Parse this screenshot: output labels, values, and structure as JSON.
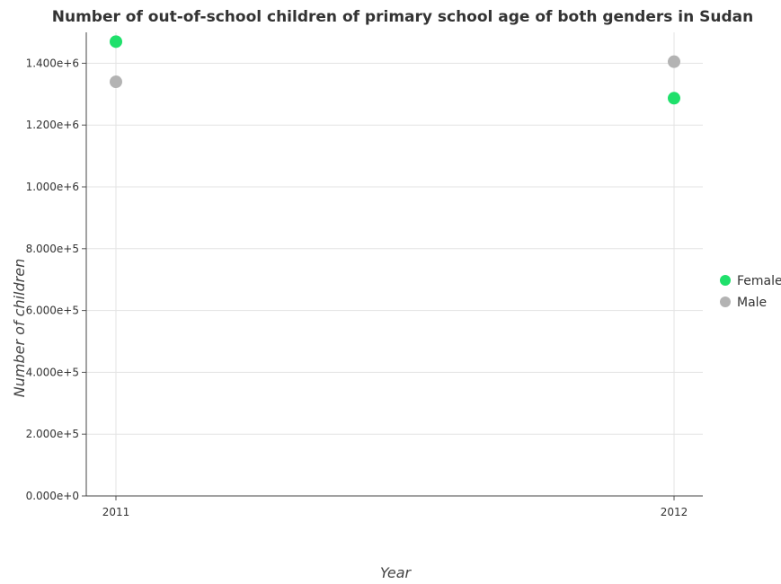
{
  "chart_data": {
    "type": "scatter",
    "title": "Number of out-of-school children of primary school age of both genders in Sudan",
    "xlabel": "Year",
    "ylabel": "Number of children",
    "categories": [
      "2011",
      "2012"
    ],
    "series": [
      {
        "name": "Female",
        "color": "#1fe06b",
        "values": [
          1470000,
          1287000
        ]
      },
      {
        "name": "Male",
        "color": "#b3b3b3",
        "values": [
          1340000,
          1405000
        ]
      }
    ],
    "ylim": [
      0,
      1500000
    ],
    "yticks": [
      {
        "value": 0,
        "label": "0.000e+0"
      },
      {
        "value": 200000,
        "label": "2.000e+5"
      },
      {
        "value": 400000,
        "label": "4.000e+5"
      },
      {
        "value": 600000,
        "label": "6.000e+5"
      },
      {
        "value": 800000,
        "label": "8.000e+5"
      },
      {
        "value": 1000000,
        "label": "1.000e+6"
      },
      {
        "value": 1200000,
        "label": "1.200e+6"
      },
      {
        "value": 1400000,
        "label": "1.400e+6"
      }
    ],
    "grid": true,
    "legend": "right"
  }
}
